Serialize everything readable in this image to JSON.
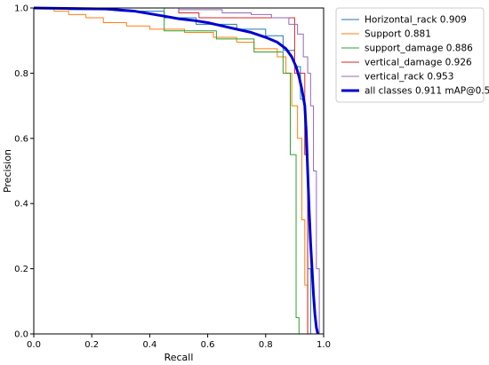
{
  "chart_data": {
    "type": "line",
    "title": "",
    "xlabel": "Recall",
    "ylabel": "Precision",
    "xlim": [
      0,
      1
    ],
    "ylim": [
      0,
      1
    ],
    "x_ticks": [
      "0.0",
      "0.2",
      "0.4",
      "0.6",
      "0.8",
      "1.0"
    ],
    "y_ticks": [
      "0.0",
      "0.2",
      "0.4",
      "0.6",
      "0.8",
      "1.0"
    ],
    "grid": false,
    "legend_position": "right, outside plot",
    "series": [
      {
        "name": "Horizontal_rack 0.909",
        "color": "#1f77b4",
        "line_width": 1,
        "points": [
          [
            0,
            1
          ],
          [
            0.12,
            1
          ],
          [
            0.12,
            0.995
          ],
          [
            0.3,
            0.995
          ],
          [
            0.3,
            0.99
          ],
          [
            0.45,
            0.99
          ],
          [
            0.45,
            0.97
          ],
          [
            0.56,
            0.97
          ],
          [
            0.56,
            0.95
          ],
          [
            0.7,
            0.95
          ],
          [
            0.7,
            0.935
          ],
          [
            0.8,
            0.935
          ],
          [
            0.8,
            0.915
          ],
          [
            0.86,
            0.915
          ],
          [
            0.86,
            0.87
          ],
          [
            0.9,
            0.87
          ],
          [
            0.9,
            0.82
          ],
          [
            0.92,
            0.82
          ],
          [
            0.92,
            0.72
          ],
          [
            0.935,
            0.72
          ],
          [
            0.935,
            0.55
          ],
          [
            0.945,
            0.55
          ],
          [
            0.945,
            0.2
          ],
          [
            0.955,
            0.2
          ],
          [
            0.955,
            0
          ]
        ]
      },
      {
        "name": "Support 0.881",
        "color": "#ff7f0e",
        "line_width": 1,
        "points": [
          [
            0,
            1
          ],
          [
            0.07,
            1
          ],
          [
            0.07,
            0.99
          ],
          [
            0.12,
            0.99
          ],
          [
            0.12,
            0.98
          ],
          [
            0.18,
            0.98
          ],
          [
            0.18,
            0.97
          ],
          [
            0.24,
            0.97
          ],
          [
            0.24,
            0.955
          ],
          [
            0.32,
            0.955
          ],
          [
            0.32,
            0.945
          ],
          [
            0.4,
            0.945
          ],
          [
            0.4,
            0.935
          ],
          [
            0.52,
            0.935
          ],
          [
            0.52,
            0.925
          ],
          [
            0.62,
            0.925
          ],
          [
            0.62,
            0.91
          ],
          [
            0.7,
            0.91
          ],
          [
            0.7,
            0.895
          ],
          [
            0.76,
            0.895
          ],
          [
            0.76,
            0.875
          ],
          [
            0.84,
            0.875
          ],
          [
            0.84,
            0.85
          ],
          [
            0.87,
            0.85
          ],
          [
            0.87,
            0.8
          ],
          [
            0.89,
            0.8
          ],
          [
            0.89,
            0.7
          ],
          [
            0.91,
            0.7
          ],
          [
            0.91,
            0.6
          ],
          [
            0.925,
            0.6
          ],
          [
            0.925,
            0.35
          ],
          [
            0.935,
            0.35
          ],
          [
            0.935,
            0.15
          ],
          [
            0.945,
            0.15
          ],
          [
            0.945,
            0
          ]
        ]
      },
      {
        "name": "support_damage 0.886",
        "color": "#2ca02c",
        "line_width": 1,
        "points": [
          [
            0,
            1
          ],
          [
            0.45,
            1
          ],
          [
            0.45,
            0.975
          ],
          [
            0.45,
            0.93
          ],
          [
            0.63,
            0.93
          ],
          [
            0.63,
            0.905
          ],
          [
            0.76,
            0.905
          ],
          [
            0.76,
            0.865
          ],
          [
            0.86,
            0.865
          ],
          [
            0.86,
            0.8
          ],
          [
            0.885,
            0.8
          ],
          [
            0.885,
            0.55
          ],
          [
            0.905,
            0.55
          ],
          [
            0.905,
            0.05
          ],
          [
            0.915,
            0.05
          ],
          [
            0.915,
            0
          ]
        ]
      },
      {
        "name": "vertical_damage 0.926",
        "color": "#d62728",
        "line_width": 1,
        "points": [
          [
            0,
            1
          ],
          [
            0.5,
            1
          ],
          [
            0.5,
            0.985
          ],
          [
            0.57,
            0.985
          ],
          [
            0.57,
            0.97
          ],
          [
            0.9,
            0.97
          ],
          [
            0.9,
            0.8
          ],
          [
            0.935,
            0.8
          ],
          [
            0.935,
            0.55
          ],
          [
            0.945,
            0.55
          ],
          [
            0.945,
            0
          ]
        ]
      },
      {
        "name": "vertical_rack 0.953",
        "color": "#9467bd",
        "line_width": 1,
        "points": [
          [
            0,
            1
          ],
          [
            0.5,
            1
          ],
          [
            0.5,
            0.995
          ],
          [
            0.65,
            0.995
          ],
          [
            0.65,
            0.985
          ],
          [
            0.75,
            0.985
          ],
          [
            0.75,
            0.98
          ],
          [
            0.82,
            0.98
          ],
          [
            0.82,
            0.97
          ],
          [
            0.88,
            0.97
          ],
          [
            0.88,
            0.95
          ],
          [
            0.91,
            0.95
          ],
          [
            0.91,
            0.92
          ],
          [
            0.93,
            0.92
          ],
          [
            0.93,
            0.85
          ],
          [
            0.945,
            0.85
          ],
          [
            0.945,
            0.8
          ],
          [
            0.955,
            0.8
          ],
          [
            0.955,
            0.7
          ],
          [
            0.965,
            0.7
          ],
          [
            0.965,
            0.5
          ],
          [
            0.975,
            0.5
          ],
          [
            0.975,
            0.2
          ],
          [
            0.985,
            0.2
          ],
          [
            0.985,
            0
          ]
        ]
      },
      {
        "name": "all classes 0.911 mAP@0.5",
        "color": "#0000d0",
        "line_width": 3,
        "points": [
          [
            0,
            1
          ],
          [
            0.25,
            0.997
          ],
          [
            0.35,
            0.99
          ],
          [
            0.45,
            0.975
          ],
          [
            0.5,
            0.967
          ],
          [
            0.55,
            0.962
          ],
          [
            0.6,
            0.955
          ],
          [
            0.65,
            0.945
          ],
          [
            0.7,
            0.935
          ],
          [
            0.75,
            0.925
          ],
          [
            0.8,
            0.91
          ],
          [
            0.84,
            0.895
          ],
          [
            0.87,
            0.875
          ],
          [
            0.89,
            0.85
          ],
          [
            0.905,
            0.82
          ],
          [
            0.915,
            0.79
          ],
          [
            0.925,
            0.75
          ],
          [
            0.935,
            0.7
          ],
          [
            0.94,
            0.62
          ],
          [
            0.945,
            0.5
          ],
          [
            0.95,
            0.38
          ],
          [
            0.955,
            0.28
          ],
          [
            0.96,
            0.2
          ],
          [
            0.965,
            0.12
          ],
          [
            0.97,
            0.06
          ],
          [
            0.975,
            0.02
          ],
          [
            0.98,
            0
          ]
        ]
      }
    ]
  }
}
